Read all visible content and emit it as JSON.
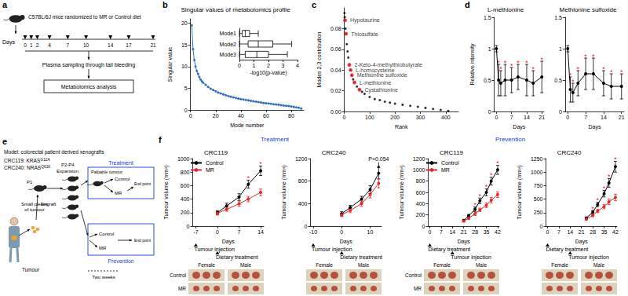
{
  "diagram_a": {
    "panel": "a",
    "title": "C57BL/6J mice randomized to MR or Control diet",
    "axis_label": "Days",
    "days": [
      0,
      1,
      2,
      4,
      7,
      10,
      14,
      17,
      21
    ],
    "sampling": "Plasma sampling through tail bleeding",
    "analysis": "Metabolomics analysis"
  },
  "diagram_e": {
    "panel": "e",
    "model": "Model: colorectal patient derived xenografts",
    "lines": [
      {
        "text": "CRC119: KRAS",
        "sup": "G12A"
      },
      {
        "text": "CRC240: NRAS",
        "sup": "Q61K"
      }
    ],
    "engraft": "Engraft",
    "p1": "P1",
    "expansion": [
      "P2-P4",
      "Expansion"
    ],
    "treatment": {
      "title": "Treatment",
      "start": "Palpable tumour",
      "arms": [
        "Control",
        "MR"
      ],
      "end": "End point"
    },
    "prevention": {
      "title": "Prevention",
      "arms": [
        "Control",
        "MR"
      ],
      "end": "End point",
      "interval": "Two weeks"
    },
    "pieces": [
      "Small pieces",
      "of tumour"
    ],
    "tumour": "Tumour"
  },
  "chart_data": [
    {
      "panel": "b",
      "type": "line",
      "title": "Singular values of metabolomics profile",
      "x_label": "Mode number",
      "y_label": "Singular value",
      "color": "#2f6fbf",
      "marker": "circle",
      "grid": false,
      "x": [
        1,
        2,
        3,
        4,
        5,
        6,
        7,
        8,
        9,
        10,
        12,
        14,
        16,
        18,
        20,
        22,
        24,
        26,
        28,
        30,
        32,
        34,
        36,
        38,
        40,
        42,
        44,
        46,
        48,
        50,
        52,
        54,
        56,
        58,
        60,
        62,
        64,
        66,
        68,
        70,
        72,
        74,
        76,
        78,
        80,
        82,
        84,
        86,
        88
      ],
      "values": [
        19.5,
        14,
        11.5,
        10,
        9,
        8.3,
        7.6,
        7,
        6.6,
        6.3,
        5.8,
        5.3,
        4.9,
        4.6,
        4.3,
        4.0,
        3.8,
        3.6,
        3.4,
        3.2,
        3.05,
        2.9,
        2.75,
        2.6,
        2.5,
        2.4,
        2.3,
        2.2,
        2.1,
        2.0,
        1.9,
        1.8,
        1.7,
        1.6,
        1.55,
        1.5,
        1.4,
        1.3,
        1.25,
        1.2,
        1.1,
        1.0,
        0.95,
        0.9,
        0.8,
        0.7,
        0.6,
        0.5,
        0.3
      ],
      "xlim": [
        0,
        90
      ],
      "xticks": [
        0,
        20,
        40,
        60,
        80
      ],
      "ylim": [
        0,
        21
      ],
      "yticks": [
        0,
        5,
        10,
        15,
        20
      ],
      "inset": {
        "type": "boxplot",
        "orientation": "horizontal",
        "categories": [
          "Mode1",
          "Mode2",
          "Mode3"
        ],
        "x_label": "-log10(p-value)",
        "boxes": [
          [
            0,
            0.2,
            0.4,
            0.7,
            1.3
          ],
          [
            0,
            0.6,
            1.3,
            2.3,
            3.6
          ],
          [
            0,
            0.4,
            1.2,
            2.0,
            3.3
          ]
        ],
        "xlim": [
          0,
          4
        ],
        "xticks": [
          0,
          1,
          2,
          3,
          4
        ]
      }
    },
    {
      "panel": "c",
      "type": "scatter",
      "x_label": "Rank",
      "y_label": "Modes 2,3 contribution",
      "color": "#000000",
      "grid": false,
      "x": [
        1,
        2,
        3,
        5,
        7,
        10,
        13,
        16,
        20,
        25,
        30,
        35,
        40,
        50,
        60,
        70,
        80,
        100,
        120,
        140,
        160,
        180,
        200,
        230,
        260,
        290,
        320,
        350,
        380,
        410
      ],
      "values": [
        0.095,
        0.091,
        0.088,
        0.08,
        0.075,
        0.065,
        0.058,
        0.052,
        0.045,
        0.04,
        0.035,
        0.031,
        0.028,
        0.024,
        0.021,
        0.019,
        0.017,
        0.014,
        0.012,
        0.011,
        0.0095,
        0.0085,
        0.0075,
        0.0065,
        0.0055,
        0.0045,
        0.0035,
        0.0025,
        0.0015,
        0.0005
      ],
      "xlim": [
        0,
        450
      ],
      "xticks": [
        0,
        100,
        200,
        300,
        400
      ],
      "ylim": [
        0,
        0.1
      ],
      "yticks": [
        {
          "value": 0,
          "label": "0.00"
        },
        0.02,
        0.04,
        0.06,
        0.08
      ],
      "highlights": {
        "color": "#e8262b",
        "points": [
          {
            "label": "Hypotaurine",
            "x": 3,
            "y": 0.088
          },
          {
            "label": "Thiosulfate",
            "x": 7,
            "y": 0.075
          },
          {
            "label": "2-Keto-4-methylthiobutyrate",
            "x": 20,
            "y": 0.045
          },
          {
            "label": "L-homocysteine",
            "x": 25,
            "y": 0.04
          },
          {
            "label": "Methionine sulfoxide",
            "x": 30,
            "y": 0.035
          },
          {
            "label": "L-methionine",
            "x": 40,
            "y": 0.028
          },
          {
            "label": "Cystathionine",
            "x": 60,
            "y": 0.021
          }
        ]
      }
    },
    {
      "panel": "d",
      "type": "line",
      "title": "L-methionine",
      "x_label": "Days",
      "y_label": "Relative intensity",
      "grid": false,
      "x": [
        0,
        1,
        2,
        4,
        7,
        10,
        14,
        17,
        21
      ],
      "xlim": [
        -1,
        22
      ],
      "xticks": [
        0,
        7,
        14,
        21
      ],
      "ylim": [
        0,
        1.5
      ],
      "yticks": [
        0,
        0.5,
        1,
        1.5
      ],
      "series": [
        {
          "color": "#000000",
          "marker": "circle",
          "line_style": "solid",
          "values": [
            1.0,
            0.5,
            0.45,
            0.5,
            0.5,
            0.55,
            0.5,
            0.45,
            0.55
          ],
          "errors": [
            0.05,
            0.25,
            0.2,
            0.25,
            0.2,
            0.2,
            0.25,
            0.2,
            0.25
          ]
        }
      ],
      "significance": {
        "color": "#e8262b",
        "marks": [
          null,
          "*",
          "*",
          "*",
          "*",
          "*",
          "*",
          "*",
          "*"
        ]
      }
    },
    {
      "type": "line",
      "title": "Methionine sulfoxide",
      "x_label": "Days",
      "grid": false,
      "x": [
        0,
        1,
        2,
        4,
        7,
        10,
        14,
        17,
        21
      ],
      "xlim": [
        -1,
        22
      ],
      "xticks": [
        0,
        7,
        14,
        21
      ],
      "ylim": [
        0,
        1.5
      ],
      "yticks": [
        0,
        0.5,
        1,
        1.5
      ],
      "series": [
        {
          "color": "#000000",
          "marker": "circle",
          "line_style": "solid",
          "values": [
            1.0,
            0.35,
            0.3,
            0.45,
            0.6,
            0.6,
            0.45,
            0.4,
            0.4
          ],
          "errors": [
            0.05,
            0.2,
            0.15,
            0.2,
            0.25,
            0.25,
            0.2,
            0.2,
            0.2
          ]
        }
      ],
      "significance": {
        "color": "#e8262b",
        "marks": [
          null,
          "*",
          "*",
          "*",
          "*",
          "*",
          "*",
          "*",
          "*"
        ]
      }
    },
    {
      "panel": "f",
      "group": "Treatment",
      "type": "line",
      "title": "CRC119",
      "x_label": "Days",
      "y_label": "Tumour volume (mm³)",
      "grid": false,
      "legend": "upper left",
      "x": [
        0,
        3,
        7,
        10,
        14
      ],
      "xlim": [
        -8,
        15
      ],
      "xticks": [
        -7,
        0,
        7,
        14
      ],
      "ylim": [
        0,
        1000
      ],
      "yticks": [
        0,
        200,
        400,
        600,
        800,
        1000
      ],
      "series": [
        {
          "name": "Control",
          "color": "#000000",
          "marker": "circle",
          "line_style": "solid",
          "values": [
            200,
            300,
            430,
            620,
            820
          ],
          "errors": [
            30,
            40,
            50,
            60,
            70
          ]
        },
        {
          "name": "MR",
          "color": "#e8262b",
          "marker": "circle",
          "line_style": "solid",
          "values": [
            190,
            250,
            330,
            400,
            500
          ],
          "errors": [
            25,
            30,
            40,
            40,
            50
          ]
        }
      ],
      "significance": {
        "color": "#e8262b",
        "marks": [
          null,
          null,
          null,
          "*",
          "*"
        ]
      },
      "annotations": [
        {
          "text": "Tumour injection",
          "x": -7
        },
        {
          "text": "Dietary treatment",
          "x": 0
        }
      ],
      "photos": {
        "columns": [
          "Female",
          "Male"
        ],
        "rows": [
          "Control",
          "MR"
        ]
      }
    },
    {
      "group": "Treatment",
      "type": "line",
      "title": "CRC240",
      "x_label": "Days",
      "y_label": "Tumour volume (mm³)",
      "grid": false,
      "x": [
        0,
        3,
        7,
        10,
        13
      ],
      "xlim": [
        -11,
        14
      ],
      "xticks": [
        -10,
        0,
        10
      ],
      "ylim": [
        0,
        1200
      ],
      "yticks": [
        0,
        400,
        800,
        1200
      ],
      "series": [
        {
          "name": "Control",
          "color": "#000000",
          "marker": "circle",
          "line_style": "solid",
          "values": [
            220,
            330,
            480,
            650,
            940
          ],
          "errors": [
            40,
            40,
            50,
            70,
            100
          ]
        },
        {
          "name": "MR",
          "color": "#e8262b",
          "marker": "circle",
          "line_style": "solid",
          "values": [
            200,
            280,
            400,
            560,
            760
          ],
          "errors": [
            30,
            40,
            50,
            60,
            80
          ]
        }
      ],
      "annotations": [
        {
          "text": "Tumour injection",
          "x": -10
        },
        {
          "text": "Dietary treatment",
          "x": 0
        },
        {
          "text": "P=0.054",
          "x": 13,
          "y": 1150
        }
      ],
      "photos": {
        "columns": [
          "Female",
          "Male"
        ]
      }
    },
    {
      "group": "Prevention",
      "type": "line",
      "title": "CRC119",
      "x_label": "Days",
      "y_label": "Tumour volume (mm³)",
      "grid": false,
      "legend": "upper left",
      "x": [
        21,
        24,
        28,
        31,
        35,
        38,
        42
      ],
      "xlim": [
        -1,
        43
      ],
      "xticks": [
        0,
        7,
        14,
        21,
        28,
        35,
        42
      ],
      "ylim": [
        0,
        1200
      ],
      "yticks": [
        0,
        200,
        400,
        600,
        800,
        1000,
        1200
      ],
      "series": [
        {
          "name": "Control",
          "color": "#000000",
          "marker": "circle",
          "line_style": "solid",
          "values": [
            100,
            180,
            300,
            450,
            600,
            800,
            1000
          ],
          "errors": [
            20,
            30,
            40,
            50,
            60,
            70,
            80
          ]
        },
        {
          "name": "MR",
          "color": "#e8262b",
          "marker": "circle",
          "line_style": "solid",
          "values": [
            90,
            140,
            220,
            290,
            370,
            460,
            560
          ],
          "errors": [
            15,
            20,
            30,
            30,
            40,
            50,
            50
          ]
        }
      ],
      "significance": {
        "color": "#e8262b",
        "marks": [
          null,
          null,
          "*",
          "*",
          "*",
          "*",
          "*"
        ]
      },
      "annotations": [
        {
          "text": "Dietary treatment",
          "x": 0
        },
        {
          "text": "Tumour injection",
          "x": 14
        }
      ],
      "photos": {
        "columns": [
          "Female",
          "Male"
        ],
        "rows": [
          "Control",
          "MR"
        ]
      }
    },
    {
      "group": "Prevention",
      "type": "line",
      "title": "CRC240",
      "x_label": "Days",
      "y_label": "Tumour volume (mm³)",
      "grid": false,
      "x": [
        24,
        28,
        31,
        35,
        38,
        42
      ],
      "xlim": [
        -1,
        43
      ],
      "xticks": [
        0,
        7,
        14,
        21,
        28,
        35,
        42
      ],
      "ylim": [
        0,
        1250
      ],
      "yticks": [
        0,
        250,
        500,
        750,
        1000,
        1250
      ],
      "series": [
        {
          "name": "Control",
          "color": "#000000",
          "marker": "circle",
          "line_style": "solid",
          "values": [
            150,
            260,
            400,
            600,
            800,
            1100
          ],
          "errors": [
            20,
            30,
            40,
            60,
            80,
            100
          ]
        },
        {
          "name": "MR",
          "color": "#e8262b",
          "marker": "circle",
          "line_style": "solid",
          "values": [
            130,
            200,
            280,
            360,
            450,
            530
          ],
          "errors": [
            20,
            25,
            30,
            40,
            50,
            60
          ]
        }
      ],
      "significance": {
        "color": "#e8262b",
        "marks": [
          null,
          "*",
          "*",
          "*",
          "*",
          "*"
        ]
      },
      "annotations": [
        {
          "text": "Dietary treatment",
          "x": 0
        },
        {
          "text": "Tumour injection",
          "x": 14
        }
      ],
      "photos": {
        "columns": [
          "Female",
          "Male"
        ]
      }
    }
  ]
}
